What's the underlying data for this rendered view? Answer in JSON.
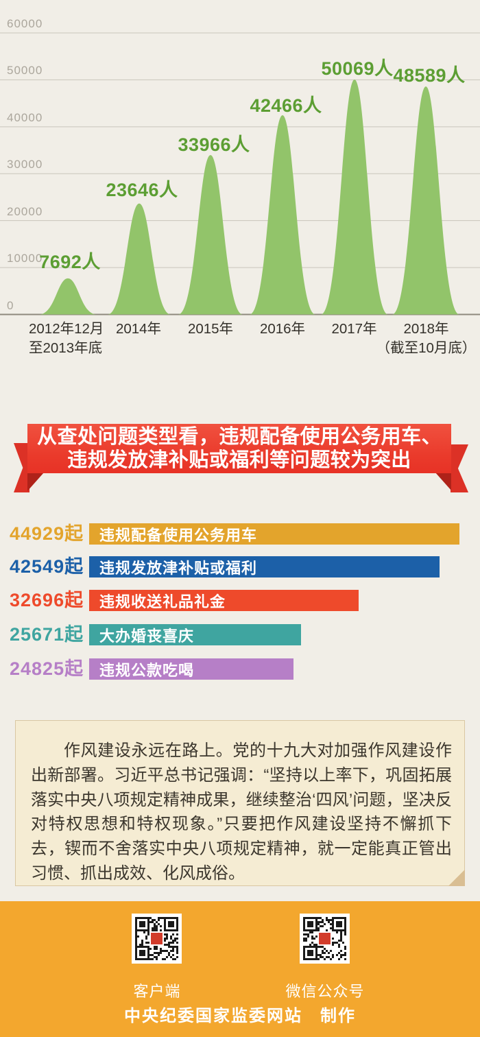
{
  "colors": {
    "paper": "#F1EEE7",
    "grid_line": "#C9C5BB",
    "axis_base_line": "#8E897E",
    "ytick_text": "#ABA69C",
    "xlabel_text": "#34312B",
    "peak_fill": "#92C46A",
    "peak_label": "#5C9E33",
    "ribbon_red": "#E73226",
    "footer_orange": "#F3A72E",
    "note_bg": "#F5ECD3",
    "qr_logo_red": "#D23C2B"
  },
  "chart_data": [
    {
      "type": "area",
      "title": "",
      "categories": [
        "2012年12月|至2013年底",
        "2014年",
        "2015年",
        "2016年",
        "2017年",
        "2018年|（截至10月底）"
      ],
      "values": [
        7692,
        23646,
        33966,
        42466,
        50069,
        48589
      ],
      "value_labels": [
        "7692人",
        "23646人",
        "33966人",
        "42466人",
        "50069人",
        "48589人"
      ],
      "ylim": [
        0,
        60000
      ],
      "ytick_labels": [
        "60000",
        "50000",
        "40000",
        "30000",
        "20000",
        "10000",
        "0"
      ],
      "grid": "on",
      "legend": "none",
      "fill_color": "#92C46A",
      "label_color": "#5C9E33"
    },
    {
      "type": "bar",
      "orientation": "horizontal",
      "categories": [
        "违规配备使用公务用车",
        "违规发放津补贴或福利",
        "违规收送礼品礼金",
        "大办婚丧喜庆",
        "违规公款吃喝"
      ],
      "values": [
        44929,
        42549,
        32696,
        25671,
        24825
      ],
      "value_labels": [
        "44929起",
        "42549起",
        "32696起",
        "25671起",
        "24825起"
      ],
      "colors": [
        "#E3A42C",
        "#1C60A8",
        "#EE4A2B",
        "#3FA5A0",
        "#B67FC7"
      ],
      "xlim": [
        0,
        46000
      ],
      "legend": "none"
    }
  ],
  "ribbon": {
    "line1": "从查处问题类型看，违规配备使用公务用车、",
    "line2": "违规发放津补贴或福利等问题较为突出"
  },
  "note": {
    "text": "作风建设永远在路上。党的十九大对加强作风建设作出新部署。习近平总书记强调：“坚持以上率下，巩固拓展落实中央八项规定精神成果，继续整治‘四风’问题，坚决反对特权思想和特权现象。”只要把作风建设坚持不懈抓下去，锲而不舍落实中央八项规定精神，就一定能真正管出习惯、抓出成效、化风成俗。"
  },
  "footer": {
    "qr_left_label": "客户端",
    "qr_right_label": "微信公众号",
    "credit": "中央纪委国家监委网站　制作"
  }
}
